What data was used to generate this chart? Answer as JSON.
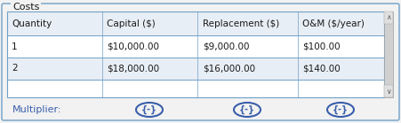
{
  "title": "Costs",
  "headers": [
    "Quantity",
    "Capital ($)",
    "Replacement ($)",
    "O&M ($/year)"
  ],
  "rows": [
    [
      "1",
      "$10,000.00",
      "$9,000.00",
      "$100.00"
    ],
    [
      "2",
      "$18,000.00",
      "$16,000.00",
      "$140.00"
    ],
    [
      "",
      "",
      "",
      ""
    ]
  ],
  "multiplier_label": "Multiplier:",
  "multiplier_symbol": "{-}",
  "header_bg": "#e8eef5",
  "row_odd_bg": "#ffffff",
  "row_even_bg": "#e8eef5",
  "row_empty_bg": "#ffffff",
  "border_color": "#6fa0c8",
  "text_color": "#1a1a1a",
  "multiplier_color": "#3a5faa",
  "title_color": "#1a1a1a",
  "outer_bg": "#f2f2f2",
  "inner_bg": "#ffffff",
  "scrollbar_bg": "#d0d0d0",
  "scrollbar_border": "#a0a0a0"
}
